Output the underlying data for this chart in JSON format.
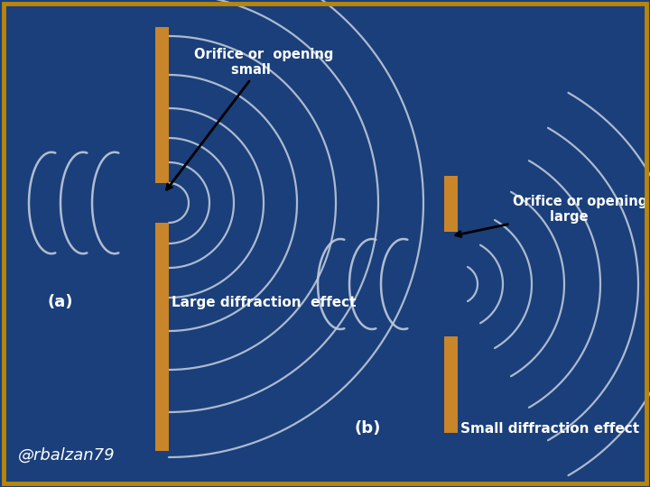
{
  "bg_color": "#1b3f7a",
  "border_color": "#b8860b",
  "wall_color": "#c8852a",
  "wave_color": "#c0ccdd",
  "text_color": "white",
  "fig_width": 7.2,
  "fig_height": 5.4,
  "label_a": "(a)",
  "label_b": "(b)",
  "label_large": "Large diffraction  effect",
  "label_small": "Small diffraction effect",
  "watermark": "@rbalzan79"
}
